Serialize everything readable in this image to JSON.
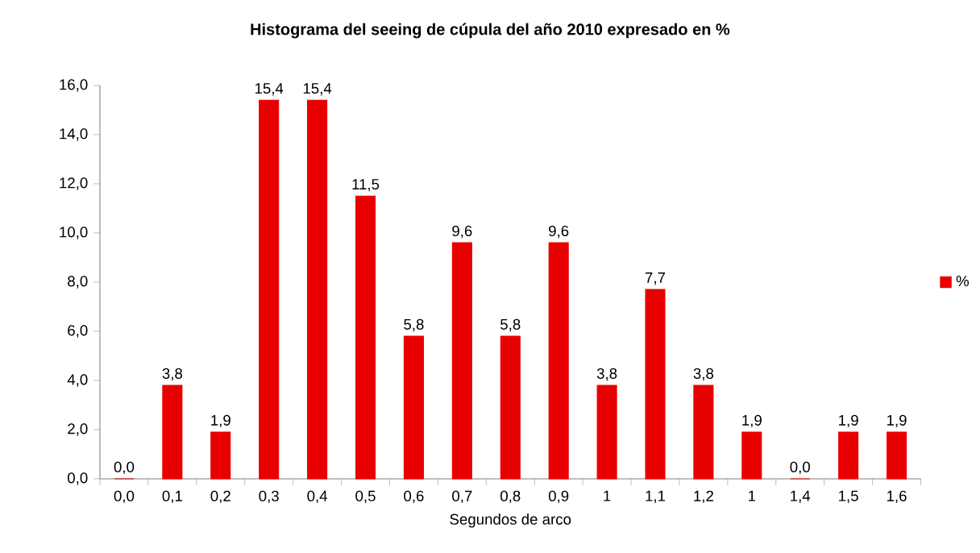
{
  "chart_data": {
    "type": "bar",
    "title": "Histograma del seeing de cúpula del año 2010 expresado en %",
    "xlabel": "Segundos de arco",
    "categories": [
      "0,0",
      "0,1",
      "0,2",
      "0,3",
      "0,4",
      "0,5",
      "0,6",
      "0,7",
      "0,8",
      "0,9",
      "1",
      "1,1",
      "1,2",
      "1",
      "1,4",
      "1,5",
      "1,6"
    ],
    "series": [
      {
        "name": "%",
        "color": "#e80000",
        "values": [
          0.0,
          3.8,
          1.9,
          15.4,
          15.4,
          11.5,
          5.8,
          9.6,
          5.8,
          9.6,
          3.8,
          7.7,
          3.8,
          1.9,
          0.0,
          1.9,
          1.9
        ],
        "value_labels": [
          "0,0",
          "3,8",
          "1,9",
          "15,4",
          "15,4",
          "11,5",
          "5,8",
          "9,6",
          "5,8",
          "9,6",
          "3,8",
          "7,7",
          "3,8",
          "1,9",
          "0,0",
          "1,9",
          "1,9"
        ]
      }
    ],
    "ylim": [
      0,
      16
    ],
    "yticks": [
      {
        "value": 0,
        "label": "0,0"
      },
      {
        "value": 2,
        "label": "2,0"
      },
      {
        "value": 4,
        "label": "4,0"
      },
      {
        "value": 6,
        "label": "6,0"
      },
      {
        "value": 8,
        "label": "8,0"
      },
      {
        "value": 10,
        "label": "10,0"
      },
      {
        "value": 12,
        "label": "12,0"
      },
      {
        "value": 14,
        "label": "14,0"
      },
      {
        "value": 16,
        "label": "16,0"
      }
    ],
    "grid": false,
    "legend": "right"
  }
}
